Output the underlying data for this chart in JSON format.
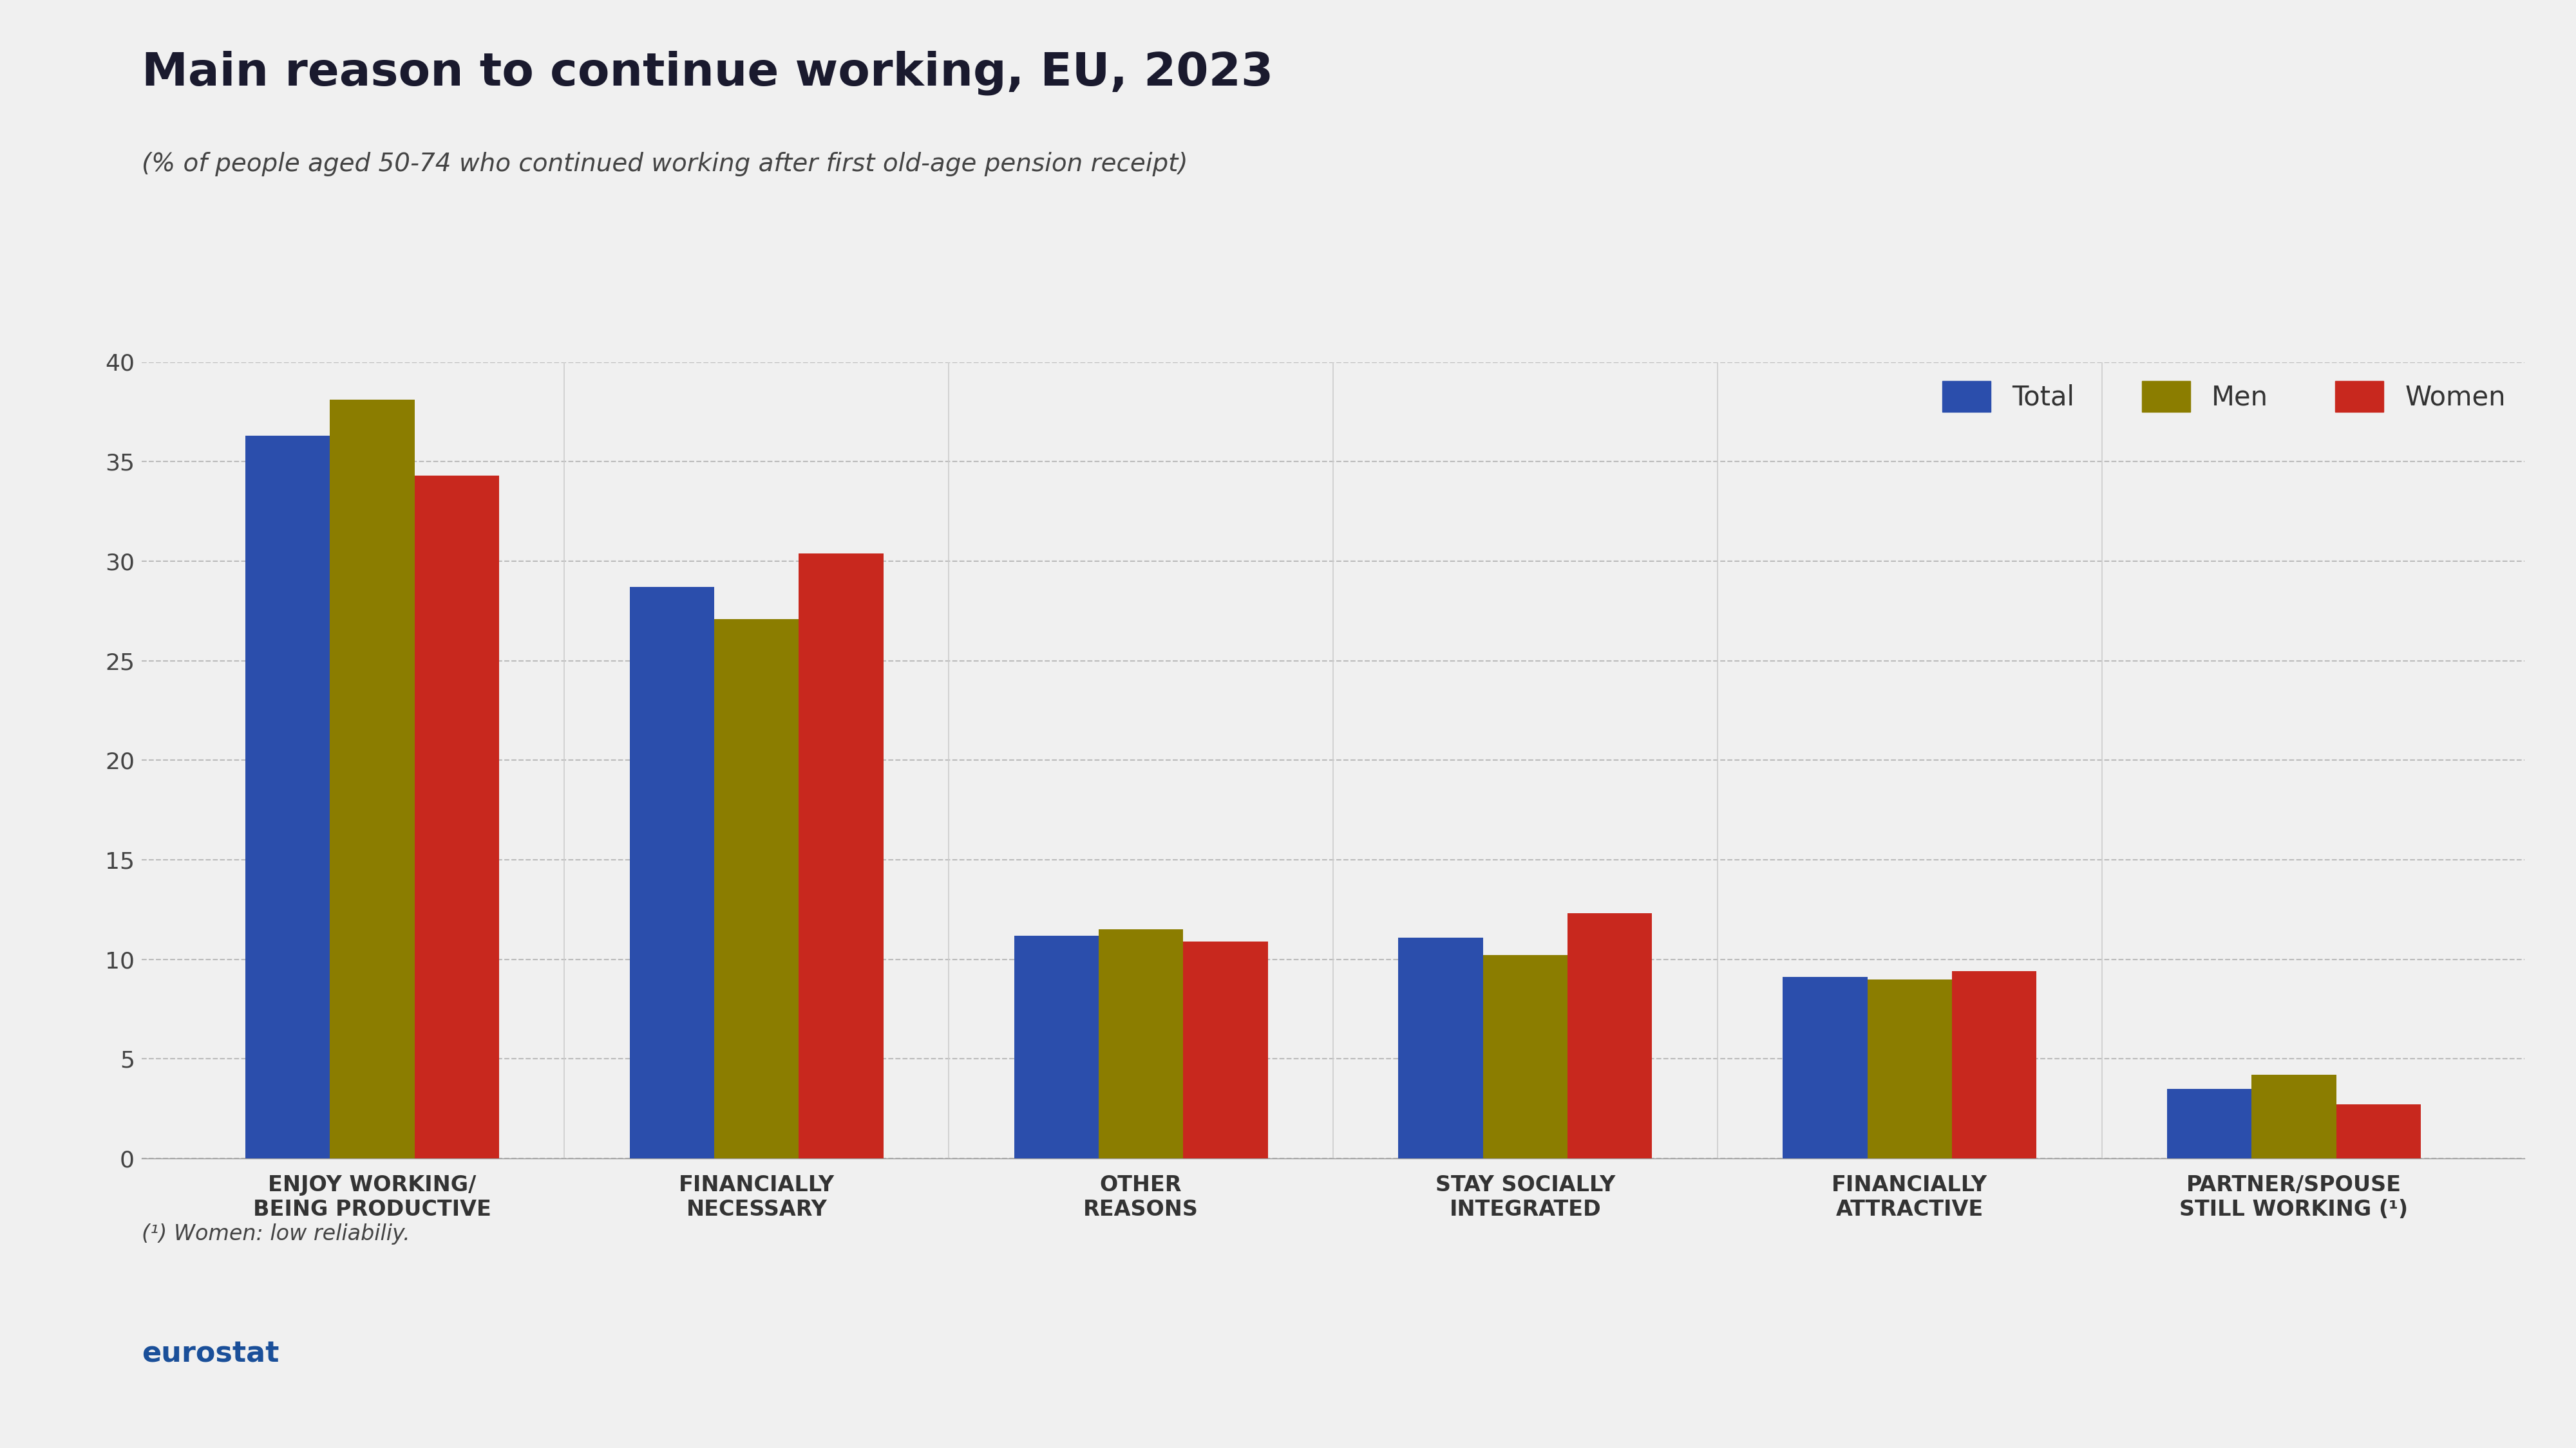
{
  "title": "Main reason to continue working, EU, 2023",
  "subtitle": "(% of people aged 50-74 who continued working after first old-age pension receipt)",
  "footnote": "(¹) Women: low reliabiliy.",
  "categories": [
    "ENJOY WORKING/\nBEING PRODUCTIVE",
    "FINANCIALLY\nNECESSARY",
    "OTHER\nREASONS",
    "STAY SOCIALLY\nINTEGRATED",
    "FINANCIALLY\nATTRACTIVE",
    "PARTNER/SPOUSE\nSTILL WORKING (¹)"
  ],
  "series": {
    "Total": [
      36.3,
      28.7,
      11.2,
      11.1,
      9.1,
      3.5
    ],
    "Men": [
      38.1,
      27.1,
      11.5,
      10.2,
      9.0,
      4.2
    ],
    "Women": [
      34.3,
      30.4,
      10.9,
      12.3,
      9.4,
      2.7
    ]
  },
  "colors": {
    "Total": "#2B4EAC",
    "Men": "#8B7D00",
    "Women": "#C8281E"
  },
  "legend_labels": [
    "Total",
    "Men",
    "Women"
  ],
  "ylim": [
    0,
    40
  ],
  "yticks": [
    0,
    5,
    10,
    15,
    20,
    25,
    30,
    35,
    40
  ],
  "background_color": "#F0F0F0",
  "plot_bg_color": "#F0F0F0",
  "title_fontsize": 52,
  "subtitle_fontsize": 28,
  "tick_fontsize": 26,
  "xtick_fontsize": 24,
  "legend_fontsize": 30,
  "footnote_fontsize": 24,
  "bar_width": 0.22
}
